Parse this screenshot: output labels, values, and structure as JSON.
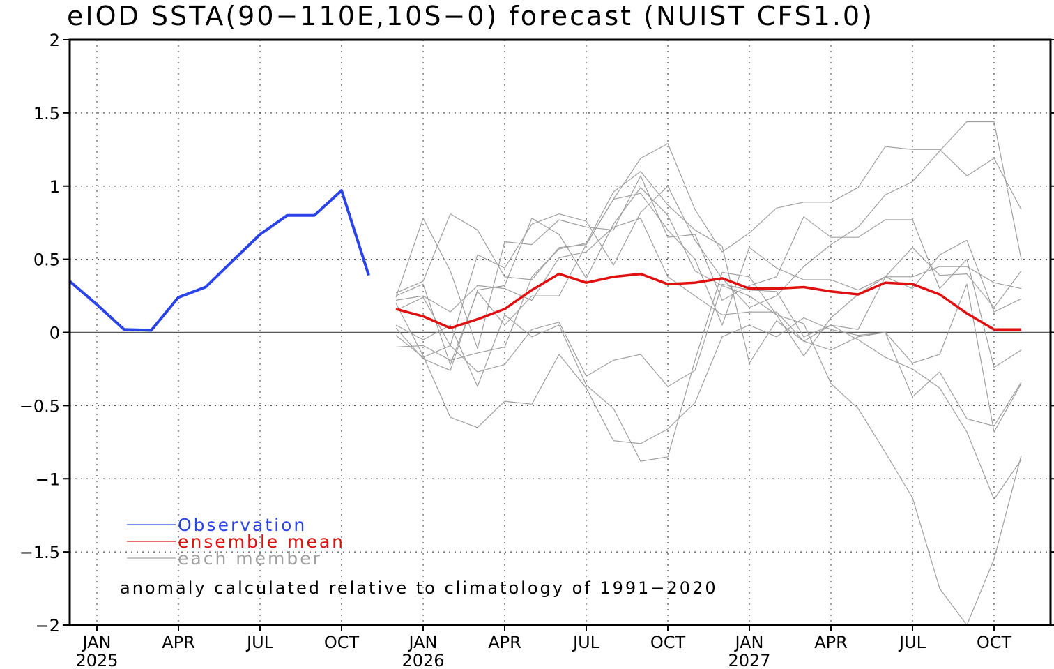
{
  "chart_data": {
    "type": "line",
    "title": "eIOD SSTA(90−110E,10S−0) forecast (NUIST CFS1.0)",
    "ylim": [
      -2,
      2
    ],
    "xlim": [
      0,
      34.8
    ],
    "yticks": [
      {
        "v": 2,
        "label": "2"
      },
      {
        "v": 1.5,
        "label": "1.5"
      },
      {
        "v": 1,
        "label": "1"
      },
      {
        "v": 0.5,
        "label": "0.5"
      },
      {
        "v": 0,
        "label": "0"
      },
      {
        "v": -0.5,
        "label": "−0.5"
      },
      {
        "v": -1,
        "label": "−1"
      },
      {
        "v": -1.5,
        "label": "−1.5"
      },
      {
        "v": -2,
        "label": "−2"
      }
    ],
    "xticks": [
      {
        "v": 1,
        "label": "JAN",
        "year": "2025"
      },
      {
        "v": 4,
        "label": "APR",
        "year": ""
      },
      {
        "v": 7,
        "label": "JUL",
        "year": ""
      },
      {
        "v": 10,
        "label": "OCT",
        "year": ""
      },
      {
        "v": 13,
        "label": "JAN",
        "year": "2026"
      },
      {
        "v": 16,
        "label": "APR",
        "year": ""
      },
      {
        "v": 19,
        "label": "JUL",
        "year": ""
      },
      {
        "v": 22,
        "label": "OCT",
        "year": ""
      },
      {
        "v": 25,
        "label": "JAN",
        "year": "2027"
      },
      {
        "v": 28,
        "label": "APR",
        "year": ""
      },
      {
        "v": 31,
        "label": "JUL",
        "year": ""
      },
      {
        "v": 34,
        "label": "OCT",
        "year": ""
      }
    ],
    "grid": true,
    "zero_line": true,
    "legend_position": "bottom-left",
    "series": [
      {
        "name": "Observation",
        "color": "#2b44e8",
        "x": [
          0,
          1,
          2,
          3,
          4,
          5,
          6,
          7,
          8,
          9,
          10,
          11
        ],
        "values": [
          0.35,
          0.19,
          0.02,
          0.015,
          0.24,
          0.31,
          0.49,
          0.67,
          0.8,
          0.8,
          0.97,
          0.39
        ]
      },
      {
        "name": "ensemble mean",
        "color": "#e01010",
        "x": [
          12,
          13,
          14,
          15,
          16,
          17,
          18,
          19,
          20,
          21,
          22,
          23,
          24,
          25,
          26,
          27,
          28,
          29,
          30,
          31,
          32,
          33,
          34,
          35
        ],
        "values": [
          0.16,
          0.11,
          0.03,
          0.09,
          0.16,
          0.29,
          0.4,
          0.34,
          0.38,
          0.4,
          0.33,
          0.34,
          0.37,
          0.3,
          0.3,
          0.31,
          0.28,
          0.26,
          0.34,
          0.33,
          0.26,
          0.13,
          0.02,
          0.02
        ]
      },
      {
        "name": "each member",
        "color": "#a0a0a0",
        "members": [
          [
            0.24,
            0.78,
            0.42,
            -0.11,
            0.62,
            0.6,
            0.77,
            0.72,
            0.7,
            1.07,
            0.65,
            0.67,
            0.22,
            0.32,
            0.38,
            0.79,
            0.65,
            0.65,
            0.77,
            0.77,
            0.3,
            0.5,
            -0.24,
            -0.12
          ],
          [
            0.27,
            0.35,
            0.81,
            0.7,
            0.38,
            0.36,
            0.58,
            0.6,
            0.91,
            0.95,
            0.7,
            0.5,
            0.05,
            0.58,
            0.44,
            0.36,
            0.36,
            0.29,
            0.38,
            0.38,
            0.45,
            0.45,
            0.34,
            0.3
          ],
          [
            0.2,
            -0.16,
            -0.58,
            -0.65,
            -0.47,
            -0.49,
            -0.15,
            -0.38,
            -0.74,
            -0.76,
            -0.66,
            -0.48,
            -0.03,
            0.05,
            -0.03,
            0.1,
            0.02,
            -0.02,
            0.0,
            -0.44,
            -0.27,
            -0.59,
            -0.64,
            -0.34
          ],
          [
            0.25,
            0.33,
            -0.22,
            0.28,
            0.05,
            0.25,
            0.25,
            0.6,
            0.91,
            1.19,
            1.29,
            0.84,
            0.55,
            0.68,
            0.85,
            0.89,
            0.89,
            0.99,
            1.27,
            1.25,
            1.25,
            1.07,
            1.19,
            0.84
          ],
          [
            0.15,
            0.24,
            -0.09,
            0.53,
            0.44,
            0.74,
            0.81,
            0.76,
            0.46,
            0.82,
            1.0,
            0.63,
            0.37,
            0.17,
            0.25,
            0.45,
            0.6,
            0.72,
            0.94,
            1.03,
            1.24,
            1.44,
            1.44,
            0.5
          ],
          [
            0.05,
            -0.05,
            0.05,
            -0.37,
            0.12,
            -0.03,
            0.05,
            -0.36,
            -0.52,
            -0.88,
            -0.85,
            -0.19,
            0.41,
            0.38,
            0.12,
            0.06,
            -0.35,
            -0.52,
            -0.82,
            -1.13,
            -1.75,
            -2.0,
            -1.55,
            -0.84
          ],
          [
            0.03,
            -0.18,
            -0.26,
            0.29,
            0.32,
            0.78,
            0.67,
            0.37,
            0.74,
            0.99,
            0.8,
            0.42,
            0.32,
            0.25,
            0.12,
            -0.16,
            0.1,
            0.26,
            0.38,
            0.58,
            0.39,
            0.4,
            0.17,
            0.42
          ],
          [
            -0.02,
            -0.17,
            -0.09,
            -0.27,
            -0.22,
            0.02,
            0.07,
            -0.3,
            -0.19,
            -0.15,
            -0.37,
            -0.26,
            0.33,
            0.29,
            0.28,
            -0.03,
            0.05,
            0.02,
            0.38,
            0.3,
            0.53,
            0.63,
            0.14,
            0.23
          ],
          [
            -0.1,
            -0.09,
            -0.19,
            -0.14,
            -0.1,
            0.38,
            0.57,
            0.61,
            0.96,
            1.1,
            0.87,
            0.7,
            0.59,
            -0.21,
            0.08,
            -0.06,
            0.05,
            -0.05,
            -0.17,
            -0.25,
            -0.38,
            -0.68,
            -1.14,
            -0.87
          ],
          [
            0.22,
            0.25,
            0.14,
            0.32,
            0.3,
            0.22,
            0.51,
            0.55,
            0.72,
            0.78,
            0.38,
            0.25,
            0.12,
            0.14,
            0.14,
            -0.06,
            -0.12,
            -0.03,
            0.0,
            -0.21,
            -0.15,
            0.33,
            -0.68,
            -0.35
          ]
        ]
      }
    ],
    "annotation": "anomaly calculated relative to climatology of 1991−2020"
  }
}
